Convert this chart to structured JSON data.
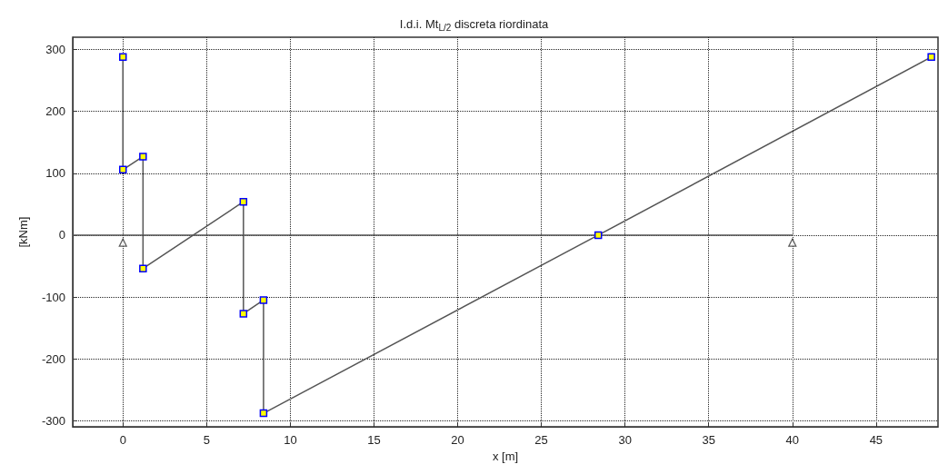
{
  "chart_data": {
    "type": "line",
    "title": "I.d.i. Mt$_{L/2}$ discreta riordinata",
    "xlabel": "x [m]",
    "ylabel": "[kNm]",
    "series": [
      {
        "color": "#555555",
        "marker": "none",
        "x": [
          -3,
          40
        ],
        "values": [
          0,
          0
        ]
      },
      {
        "color": "#555555",
        "marker": "square",
        "x": [
          0,
          0,
          1.2,
          1.2,
          7.2,
          7.2,
          8.4,
          8.4,
          28.4,
          48.3
        ],
        "values": [
          288,
          106,
          127,
          -54,
          54,
          -127,
          -105,
          -288,
          0,
          288
        ]
      },
      {
        "type": "scatter",
        "color": "#333333",
        "marker": "triangle",
        "x": [
          0,
          40
        ],
        "values": [
          -12,
          -12
        ]
      }
    ],
    "xlim": [
      -3,
      48.7
    ],
    "xticks": [
      0,
      5,
      10,
      15,
      20,
      25,
      30,
      35,
      40,
      45
    ],
    "ylim": [
      -310,
      320
    ],
    "yticks": [
      -300,
      -200,
      -100,
      0,
      100,
      200,
      300
    ],
    "grid": true,
    "line_style": "solid"
  }
}
